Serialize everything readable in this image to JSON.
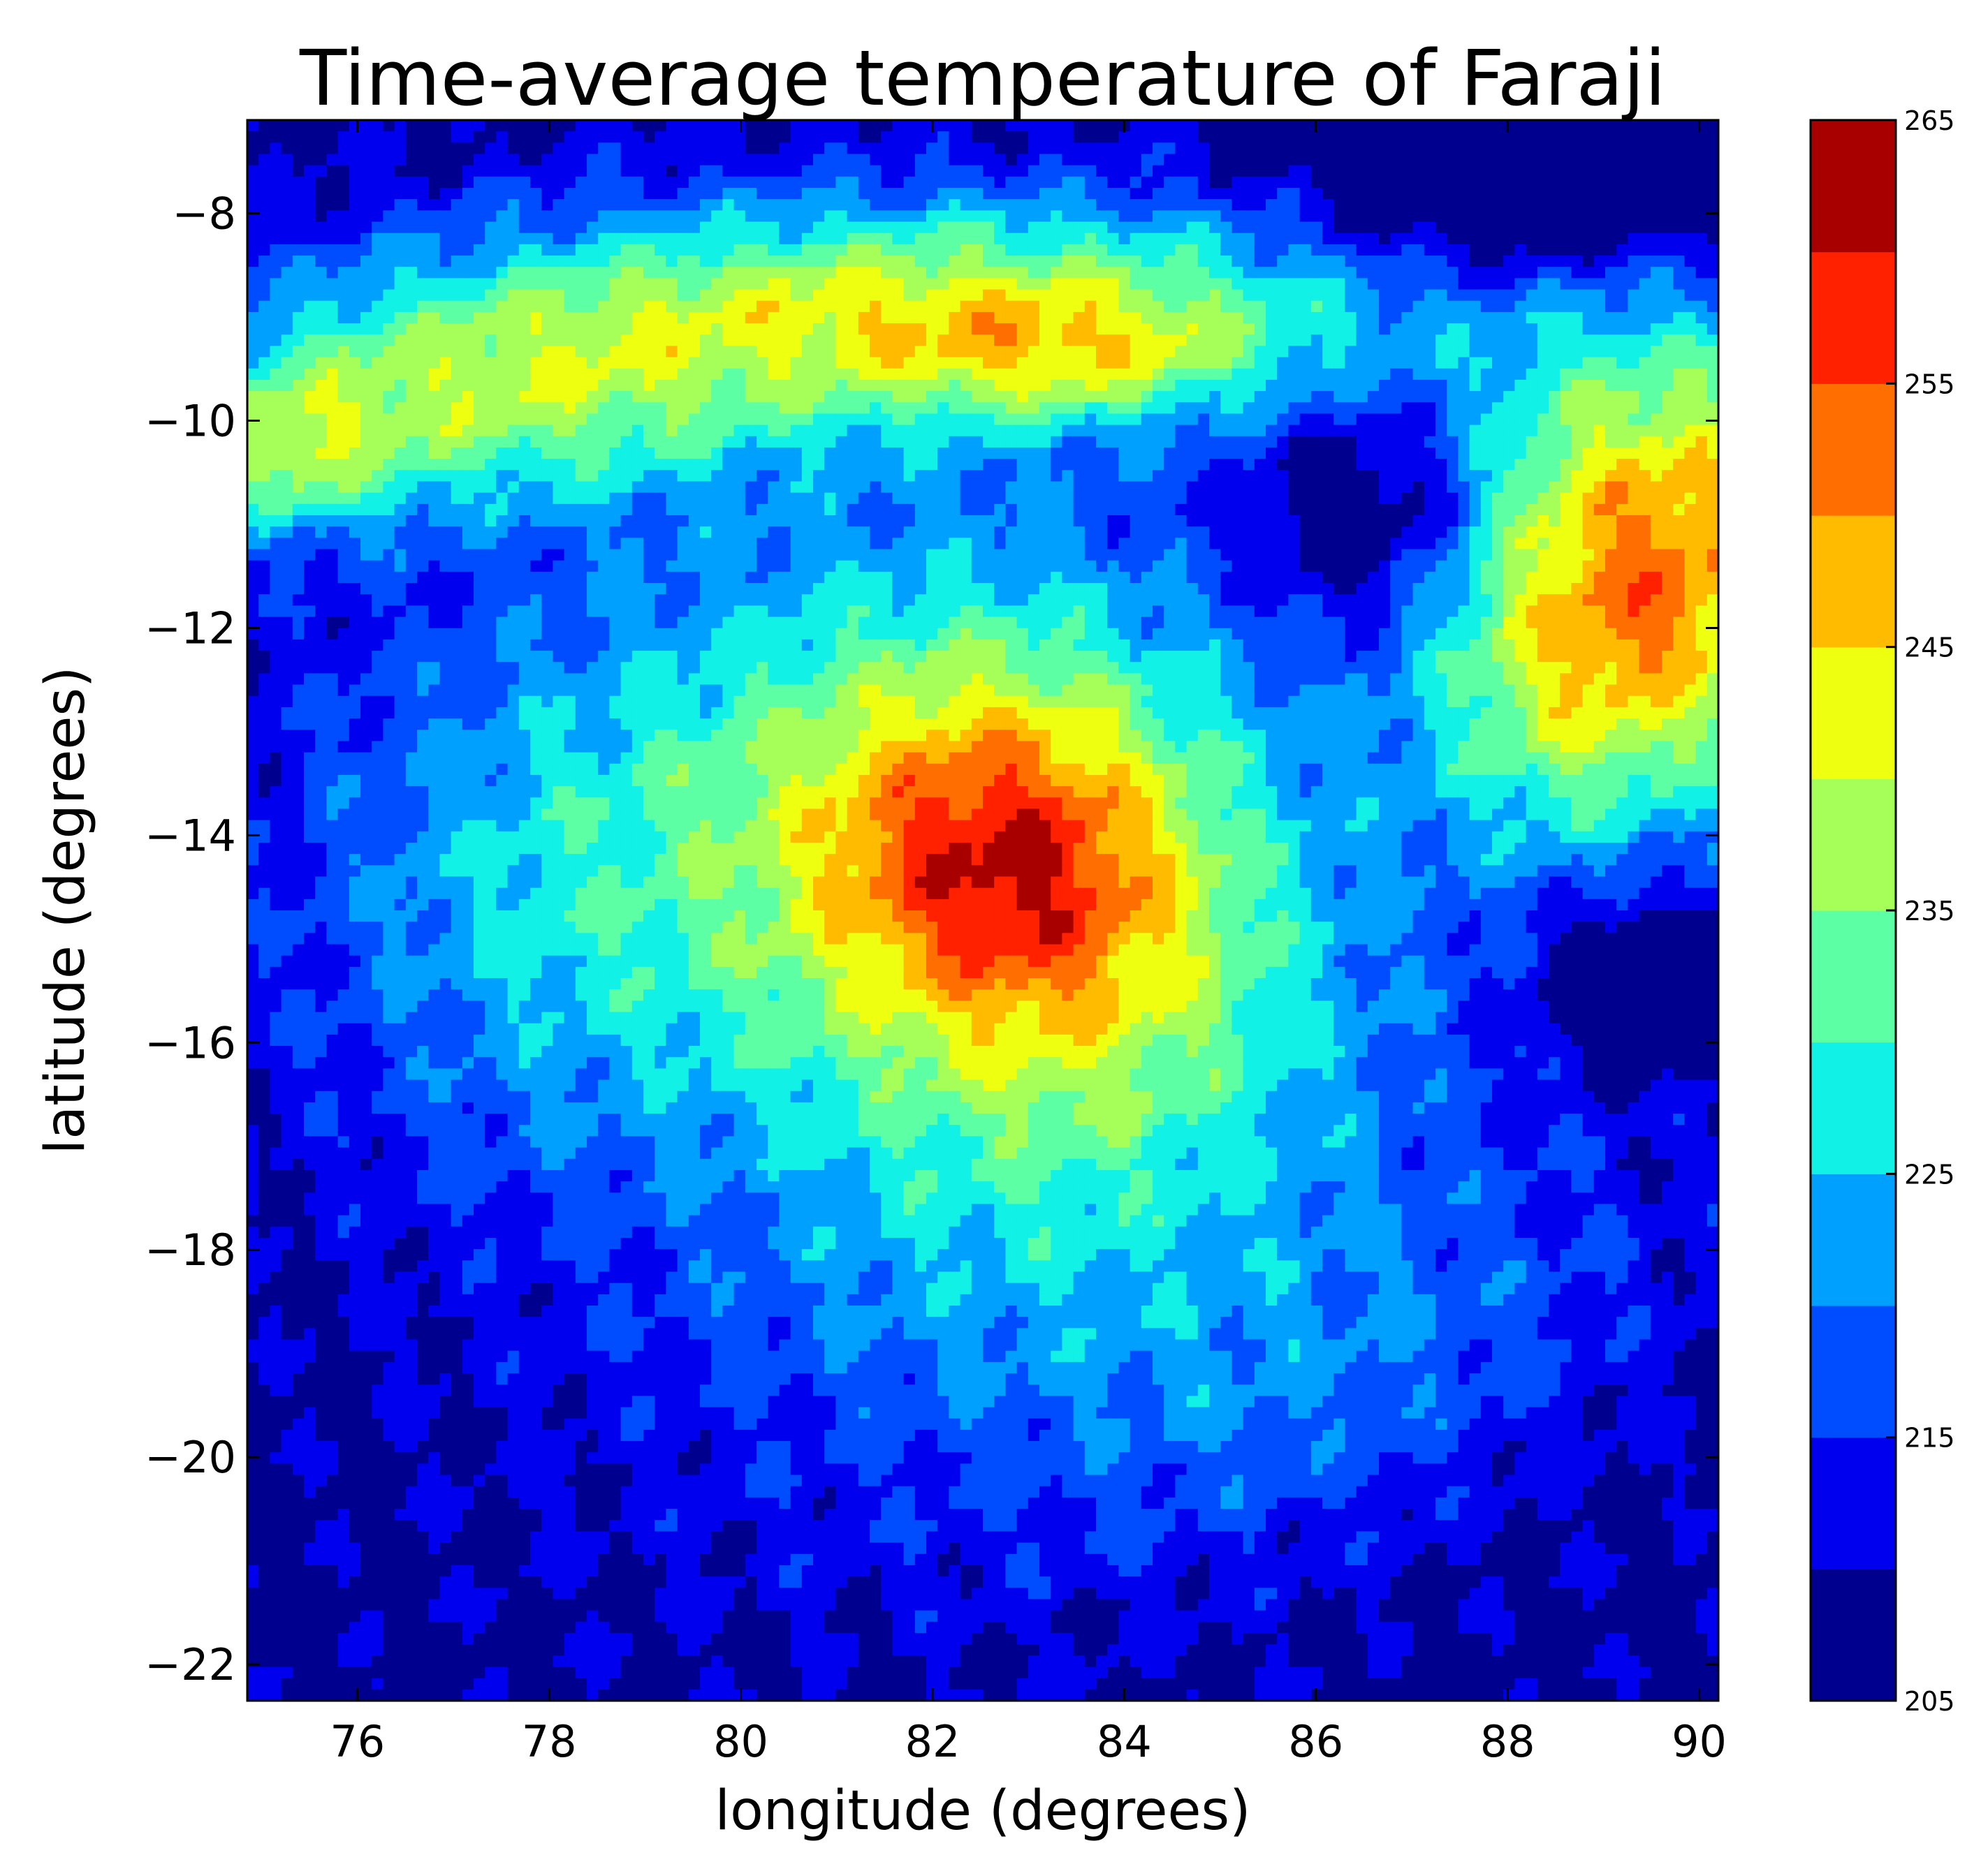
{
  "chart_data": {
    "type": "heatmap",
    "subtype": "filled-contour",
    "title": "Time-average temperature of Faraji",
    "xlabel": "longitude (degrees)",
    "ylabel": "latitude (degrees)",
    "xlim": [
      74.85,
      90.2
    ],
    "ylim": [
      -22.35,
      -7.1
    ],
    "xticks": [
      76,
      78,
      80,
      82,
      84,
      86,
      88,
      90
    ],
    "xtick_labels": [
      "76",
      "78",
      "80",
      "82",
      "84",
      "86",
      "88",
      "90"
    ],
    "yticks": [
      -8,
      -10,
      -12,
      -14,
      -16,
      -18,
      -20,
      -22
    ],
    "ytick_labels": [
      "−8",
      "−10",
      "−12",
      "−14",
      "−16",
      "−18",
      "−20",
      "−22"
    ],
    "grid": false,
    "colorbar": {
      "vmin": 205,
      "vmax": 265,
      "levels": [
        205,
        210,
        215,
        220,
        225,
        230,
        235,
        240,
        245,
        250,
        255,
        260,
        265
      ],
      "colors": [
        "#00008f",
        "#0000ee",
        "#004cff",
        "#00a0ff",
        "#11f1e6",
        "#5cffa3",
        "#a6ff59",
        "#eeff10",
        "#ffbb00",
        "#ff6e00",
        "#ff2100",
        "#a80000"
      ],
      "tick_values": [
        205,
        215,
        225,
        235,
        245,
        255,
        265
      ],
      "tick_labels": [
        "205",
        "215",
        "225",
        "235",
        "245",
        "255",
        "265"
      ]
    },
    "features": [
      {
        "name": "warm core",
        "center_lon": 82.7,
        "center_lat": -14.2,
        "peak_value": 265
      },
      {
        "name": "northern warm band",
        "center_lon": 82.0,
        "center_lat": -8.8,
        "peak_value": 252
      },
      {
        "name": "eastern warm patch",
        "center_lon": 90.0,
        "center_lat": -11.0,
        "peak_value": 257
      },
      {
        "name": "western warm patch",
        "center_lon": 75.6,
        "center_lat": -10.4,
        "peak_value": 247
      },
      {
        "name": "northeast cold patch",
        "center_lon": 88.5,
        "center_lat": -7.6,
        "peak_value": 206
      },
      {
        "name": "southern cold band",
        "center_lon": 83.0,
        "center_lat": -22.0,
        "peak_value": 207
      },
      {
        "name": "eastern cold spot",
        "center_lon": 89.2,
        "center_lat": -15.4,
        "peak_value": 212
      }
    ]
  }
}
